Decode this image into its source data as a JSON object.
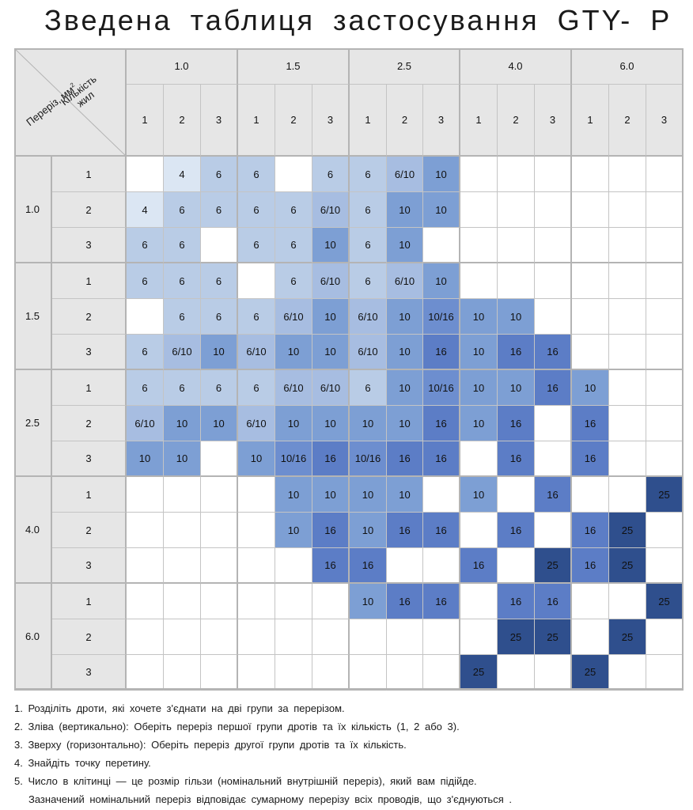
{
  "title": "Зведена таблиця застосування  GTY- P",
  "corner": {
    "section_label": "Переріз, мм",
    "section_sup": "2",
    "cores_label_line1": "Кількість",
    "cores_label_line2": "жил"
  },
  "sections": [
    "1.0",
    "1.5",
    "2.5",
    "4.0",
    "6.0"
  ],
  "cores": [
    "1",
    "2",
    "3"
  ],
  "colors": {
    "header_bg": "#e6e6e6",
    "grid_line": "#c4c4c4",
    "size_4": "#dbe6f3",
    "size_6": "#b9cce6",
    "size_6_10": "#a7bde1",
    "size_10": "#7d9fd4",
    "size_10_16": "#6d8ecf",
    "size_16": "#5c7dc6",
    "size_25": "#2f4f8d"
  },
  "matrix": [
    [
      "",
      "4",
      "6",
      "6",
      "",
      "6",
      "6",
      "6/10",
      "10",
      "",
      "",
      "",
      "",
      "",
      ""
    ],
    [
      "4",
      "6",
      "6",
      "6",
      "6",
      "6/10",
      "6",
      "10",
      "10",
      "",
      "",
      "",
      "",
      "",
      ""
    ],
    [
      "6",
      "6",
      "",
      "6",
      "6",
      "10",
      "6",
      "10",
      "",
      "",
      "",
      "",
      "",
      "",
      ""
    ],
    [
      "6",
      "6",
      "6",
      "",
      "6",
      "6/10",
      "6",
      "6/10",
      "10",
      "",
      "",
      "",
      "",
      "",
      ""
    ],
    [
      "",
      "6",
      "6",
      "6",
      "6/10",
      "10",
      "6/10",
      "10",
      "10/16",
      "10",
      "10",
      "",
      "",
      "",
      ""
    ],
    [
      "6",
      "6/10",
      "10",
      "6/10",
      "10",
      "10",
      "6/10",
      "10",
      "16",
      "10",
      "16",
      "16",
      "",
      "",
      ""
    ],
    [
      "6",
      "6",
      "6",
      "6",
      "6/10",
      "6/10",
      "6",
      "10",
      "10/16",
      "10",
      "10",
      "16",
      "10",
      "",
      ""
    ],
    [
      "6/10",
      "10",
      "10",
      "6/10",
      "10",
      "10",
      "10",
      "10",
      "16",
      "10",
      "16",
      "",
      "16",
      "",
      ""
    ],
    [
      "10",
      "10",
      "",
      "10",
      "10/16",
      "16",
      "10/16",
      "16",
      "16",
      "",
      "16",
      "",
      "16",
      "",
      ""
    ],
    [
      "",
      "",
      "",
      "",
      "10",
      "10",
      "10",
      "10",
      "",
      "10",
      "",
      "16",
      "",
      "",
      "25"
    ],
    [
      "",
      "",
      "",
      "",
      "10",
      "16",
      "10",
      "16",
      "16",
      "",
      "16",
      "",
      "16",
      "25",
      ""
    ],
    [
      "",
      "",
      "",
      "",
      "",
      "16",
      "16",
      "",
      "",
      "16",
      "",
      "25",
      "16",
      "25",
      ""
    ],
    [
      "",
      "",
      "",
      "",
      "",
      "",
      "10",
      "16",
      "16",
      "",
      "16",
      "16",
      "",
      "",
      "25"
    ],
    [
      "",
      "",
      "",
      "",
      "",
      "",
      "",
      "",
      "",
      "",
      "25",
      "25",
      "",
      "25",
      ""
    ],
    [
      "",
      "",
      "",
      "",
      "",
      "",
      "",
      "",
      "",
      "25",
      "",
      "",
      "25",
      "",
      ""
    ]
  ],
  "notes": [
    "1.  Розділіть  дроти,  які хочете  з'єднати  на  дві групи  за перерізом.",
    "2. Зліва (вертикально):  Оберіть  переріз  першої  групи  дротів  та їх кількість  (1, 2 або 3).",
    "3. Зверху (горизонтально):  Оберіть  переріз  другої групи дротів  та їх кількість.",
    "4. Знайдіть  точку  перетину.",
    "5. Число  в клітинці  — це розмір  гільзи  (номінальний  внутрішній  переріз),  який вам підійде.",
    "   Зазначений  номінальний  переріз відповідає  сумарному  перерізу  всіх проводів,  що з'єднуються ."
  ]
}
